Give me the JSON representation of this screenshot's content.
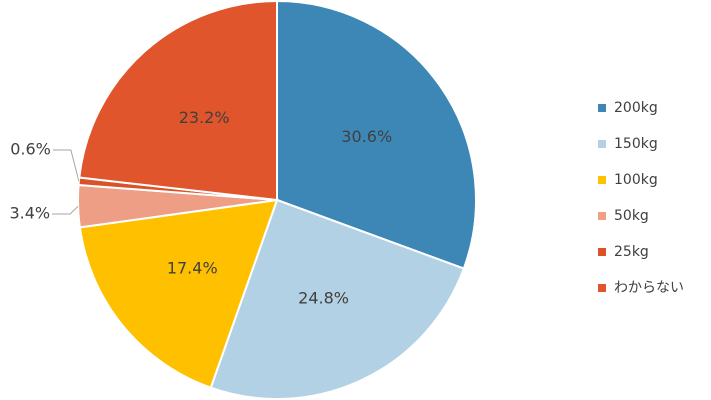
{
  "chart_data": {
    "type": "pie",
    "categories": [
      "200kg",
      "150kg",
      "100kg",
      "50kg",
      "25kg",
      "わからない"
    ],
    "values": [
      30.6,
      24.8,
      17.4,
      3.4,
      0.6,
      23.2
    ],
    "value_labels": [
      "30.6%",
      "24.8%",
      "17.4%",
      "3.4%",
      "0.6%",
      "23.2%"
    ],
    "colors": [
      "#3d87b6",
      "#b3d1e4",
      "#ffc000",
      "#ee9e84",
      "#d9532a",
      "#e0552b"
    ],
    "legend": "right"
  }
}
